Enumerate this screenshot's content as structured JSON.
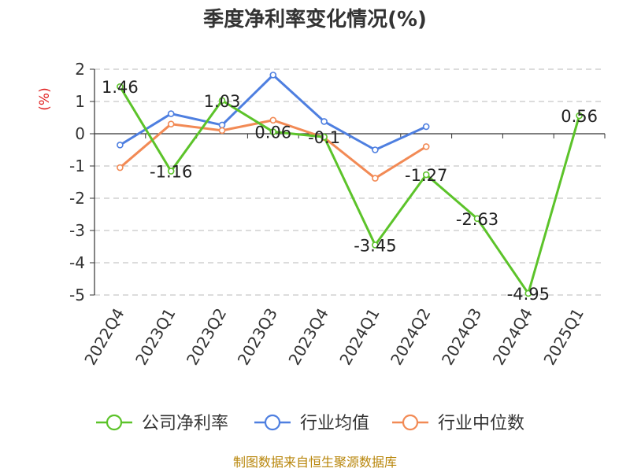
{
  "chart_data": {
    "type": "line",
    "title": "季度净利率变化情况(%)",
    "ylabel": "(%)",
    "categories": [
      "2022Q4",
      "2023Q1",
      "2023Q2",
      "2023Q3",
      "2023Q4",
      "2024Q1",
      "2024Q2",
      "2024Q3",
      "2024Q4",
      "2025Q1"
    ],
    "ylim": [
      -5,
      2
    ],
    "yticks": [
      "2",
      "1",
      "0",
      "-1",
      "-2",
      "-3",
      "-4",
      "-5"
    ],
    "grid": true,
    "legend_position": "bottom",
    "series": [
      {
        "name": "公司净利率",
        "color": "#5cc32a",
        "values": [
          1.46,
          -1.16,
          1.03,
          0.06,
          -0.1,
          -3.45,
          -1.27,
          -2.63,
          -4.95,
          0.56
        ],
        "labels": [
          "1.46",
          "-1.16",
          "1.03",
          "0.06",
          "-0.1",
          "-3.45",
          "-1.27",
          "-2.63",
          "-4.95",
          "0.56"
        ]
      },
      {
        "name": "行业均值",
        "color": "#4e7fe0",
        "values": [
          -0.35,
          0.62,
          0.27,
          1.82,
          0.38,
          -0.5,
          0.22,
          null,
          null,
          null
        ]
      },
      {
        "name": "行业中位数",
        "color": "#f28a55",
        "values": [
          -1.05,
          0.3,
          0.1,
          0.42,
          -0.12,
          -1.38,
          -0.4,
          null,
          null,
          null
        ]
      }
    ]
  },
  "source": "制图数据来自恒生聚源数据库"
}
